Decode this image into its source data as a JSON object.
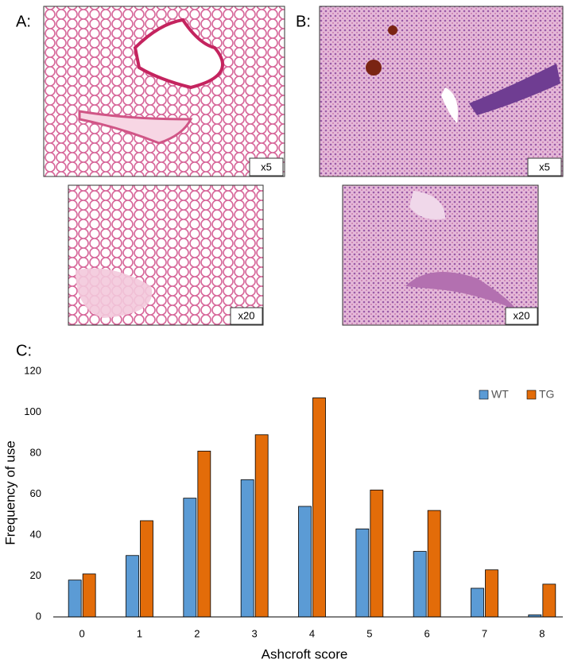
{
  "panels": [
    {
      "label": "A:",
      "magnifications": [
        "x5",
        "x20"
      ]
    },
    {
      "label": "B:",
      "magnifications": [
        "x5",
        "x20"
      ]
    }
  ],
  "chart_data": {
    "type": "bar",
    "panel_label": "C:",
    "x_label": "Ashcroft score",
    "y_label": "Frequency of use",
    "categories": [
      "0",
      "1",
      "2",
      "3",
      "4",
      "5",
      "6",
      "7",
      "8"
    ],
    "series": [
      {
        "name": "WT",
        "color": "#5b9bd5",
        "values": [
          18,
          30,
          58,
          67,
          54,
          43,
          32,
          14,
          1
        ]
      },
      {
        "name": "TG",
        "color": "#e36c09",
        "values": [
          21,
          47,
          81,
          89,
          107,
          62,
          52,
          23,
          16
        ]
      }
    ],
    "ylim": [
      0,
      120
    ],
    "yticks": [
      0,
      20,
      40,
      60,
      80,
      100,
      120
    ],
    "grid": false,
    "legend": "upper right"
  }
}
